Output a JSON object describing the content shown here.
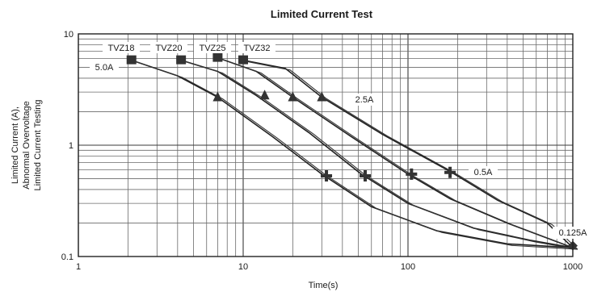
{
  "chart_data": {
    "type": "line",
    "title": "Limited Current Test",
    "xlabel": "Time(s)",
    "ylabel_lines": [
      "Limited Current (A),",
      "Abnormal Overvoltage",
      "Limited Current Testing"
    ],
    "x_scale": "log",
    "y_scale": "log",
    "xlim": [
      1,
      1000
    ],
    "ylim": [
      0.1,
      10
    ],
    "x_ticks": [
      "1",
      "10",
      "100",
      "1000"
    ],
    "y_ticks": [
      "0.1",
      "1",
      "10"
    ],
    "grid": true,
    "series": [
      {
        "name": "TVZ18",
        "points": [
          [
            2.1,
            5.8
          ],
          [
            4,
            4.2
          ],
          [
            7,
            2.7
          ],
          [
            15,
            1.2
          ],
          [
            30,
            0.55
          ],
          [
            60,
            0.28
          ],
          [
            150,
            0.17
          ],
          [
            400,
            0.13
          ],
          [
            1000,
            0.12
          ]
        ]
      },
      {
        "name": "TVZ20",
        "points": [
          [
            4.2,
            5.8
          ],
          [
            7,
            4.6
          ],
          [
            12,
            2.8
          ],
          [
            25,
            1.3
          ],
          [
            52,
            0.55
          ],
          [
            100,
            0.3
          ],
          [
            250,
            0.18
          ],
          [
            550,
            0.14
          ],
          [
            1000,
            0.12
          ]
        ]
      },
      {
        "name": "TVZ25",
        "points": [
          [
            7,
            6.1
          ],
          [
            12,
            4.6
          ],
          [
            20,
            2.7
          ],
          [
            45,
            1.2
          ],
          [
            100,
            0.55
          ],
          [
            180,
            0.33
          ],
          [
            400,
            0.2
          ],
          [
            1000,
            0.12
          ]
        ]
      },
      {
        "name": "TVZ32",
        "points": [
          [
            10,
            5.8
          ],
          [
            18,
            4.9
          ],
          [
            30,
            2.7
          ],
          [
            70,
            1.25
          ],
          [
            180,
            0.58
          ],
          [
            350,
            0.32
          ],
          [
            700,
            0.2
          ],
          [
            1000,
            0.12
          ]
        ]
      }
    ],
    "markers": [
      {
        "shape": "square",
        "points": [
          [
            2.1,
            5.8
          ],
          [
            4.2,
            5.8
          ],
          [
            7,
            6.1
          ],
          [
            10,
            5.8
          ]
        ]
      },
      {
        "shape": "triangle",
        "points": [
          [
            7,
            2.7
          ],
          [
            13.5,
            2.8
          ],
          [
            20,
            2.7
          ],
          [
            30,
            2.7
          ]
        ]
      },
      {
        "shape": "cross",
        "points": [
          [
            32,
            0.53
          ],
          [
            55,
            0.53
          ],
          [
            105,
            0.55
          ],
          [
            180,
            0.57
          ]
        ]
      },
      {
        "shape": "diamond",
        "points": [
          [
            1000,
            0.125
          ]
        ]
      }
    ],
    "annotations": [
      "TVZ18",
      "TVZ20",
      "TVZ25",
      "TVZ32",
      "5.0A",
      "2.5A",
      "0.5A",
      "0.125A"
    ]
  }
}
